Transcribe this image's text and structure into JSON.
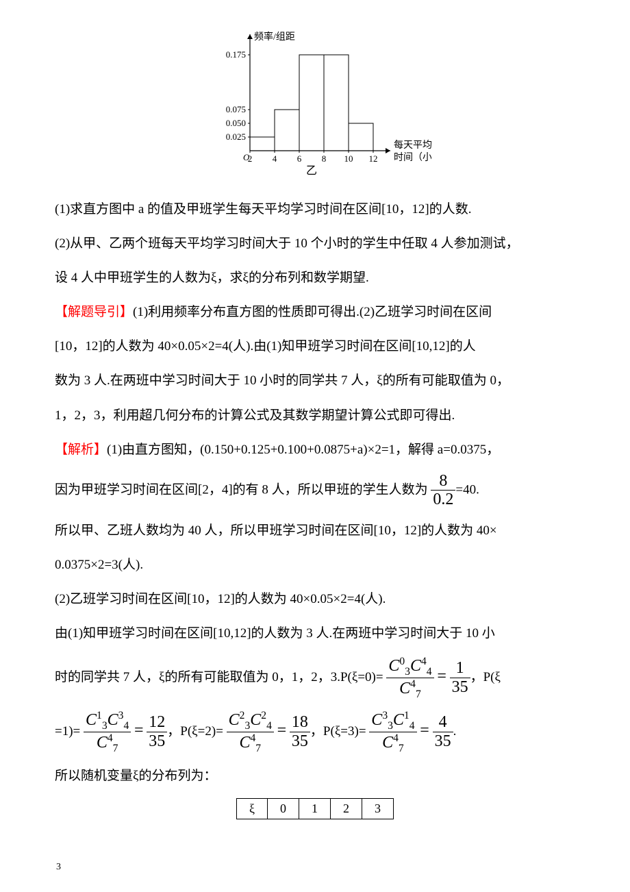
{
  "chart": {
    "type": "histogram",
    "y_label": "频率/组距",
    "x_label_line1": "每天平均学习",
    "x_label_line2": "时间（小时）",
    "sub_label": "乙",
    "origin_label": "O",
    "x_ticks": [
      2,
      4,
      6,
      8,
      10,
      12
    ],
    "y_ticks": [
      0.025,
      0.05,
      0.075,
      0.175
    ],
    "bars": [
      {
        "x0": 2,
        "x1": 4,
        "h": 0.025
      },
      {
        "x0": 4,
        "x1": 6,
        "h": 0.075
      },
      {
        "x0": 6,
        "x1": 8,
        "h": 0.175
      },
      {
        "x0": 8,
        "x1": 10,
        "h": 0.175
      },
      {
        "x0": 10,
        "x1": 12,
        "h": 0.05
      }
    ],
    "colors": {
      "axis": "#000000",
      "bar_fill": "#ffffff",
      "bar_stroke": "#000000",
      "background": "#ffffff",
      "text": "#000000"
    },
    "fontsize_axis_label": 14,
    "fontsize_ticks": 13
  },
  "q1": "(1)求直方图中 a 的值及甲班学生每天平均学习时间在区间[10，12]的人数.",
  "q2a": "(2)从甲、乙两个班每天平均学习时间大于 10 个小时的学生中任取 4 人参加测试，",
  "q2b": "设 4 人中甲班学生的人数为ξ，求ξ的分布列和数学期望.",
  "hint_label": "【解题导引】",
  "hint1": "(1)利用频率分布直方图的性质即可得出.(2)乙班学习时间在区间",
  "hint2": "[10，12]的人数为 40×0.05×2=4(人).由(1)知甲班学习时间在区间[10,12]的人",
  "hint3": "数为 3 人.在两班中学习时间大于 10 小时的同学共 7 人，ξ的所有可能取值为 0，",
  "hint4": "1，2，3，利用超几何分布的计算公式及其数学期望计算公式即可得出.",
  "ans_label": "【解析】",
  "ans1": "(1)由直方图知，(0.150+0.125+0.100+0.0875+a)×2=1，解得 a=0.0375，",
  "ans2a": "因为甲班学习时间在区间[2，4]的有 8 人，所以甲班的学生人数为",
  "frac_8_02_num": "8",
  "frac_8_02_den": "0.2",
  "ans2b": "=40.",
  "ans3": "所以甲、乙班人数均为 40 人，所以甲班学习时间在区间[10，12]的人数为 40×",
  "ans4": "0.0375×2=3(人).",
  "ans5": "(2)乙班学习时间在区间[10，12]的人数为 40×0.05×2=4(人).",
  "ans6": "由(1)知甲班学习时间在区间[10,12]的人数为 3 人.在两班中学习时间大于 10 小",
  "ans7a": "时的同学共 7 人，ξ的所有可能取值为 0，1，2，3.P(ξ=0)=",
  "p0_num_a_sup": "0",
  "p0_num_a_sub": "3",
  "p0_num_b_sup": "4",
  "p0_num_b_sub": "4",
  "p0_den_sup": "4",
  "p0_den_sub": "7",
  "p0_val_num": "1",
  "p0_val_den": "35",
  "ans7b": "，P(ξ",
  "ans8a": "=1)=",
  "p1_num_a_sup": "1",
  "p1_num_a_sub": "3",
  "p1_num_b_sup": "3",
  "p1_num_b_sub": "4",
  "p1_den_sup": "4",
  "p1_den_sub": "7",
  "p1_val_num": "12",
  "p1_val_den": "35",
  "ans8b": "，P(ξ=2)=",
  "p2_num_a_sup": "2",
  "p2_num_a_sub": "3",
  "p2_num_b_sup": "2",
  "p2_num_b_sub": "4",
  "p2_den_sup": "4",
  "p2_den_sub": "7",
  "p2_val_num": "18",
  "p2_val_den": "35",
  "ans8c": "，P(ξ=3)=",
  "p3_num_a_sup": "3",
  "p3_num_a_sub": "3",
  "p3_num_b_sup": "1",
  "p3_num_b_sub": "4",
  "p3_den_sup": "4",
  "p3_den_sub": "7",
  "p3_val_num": "4",
  "p3_val_den": "35",
  "ans8d": ".",
  "ans9": "所以随机变量ξ的分布列为：",
  "table": {
    "header": [
      "ξ",
      "0",
      "1",
      "2",
      "3"
    ]
  },
  "page_number": "3"
}
